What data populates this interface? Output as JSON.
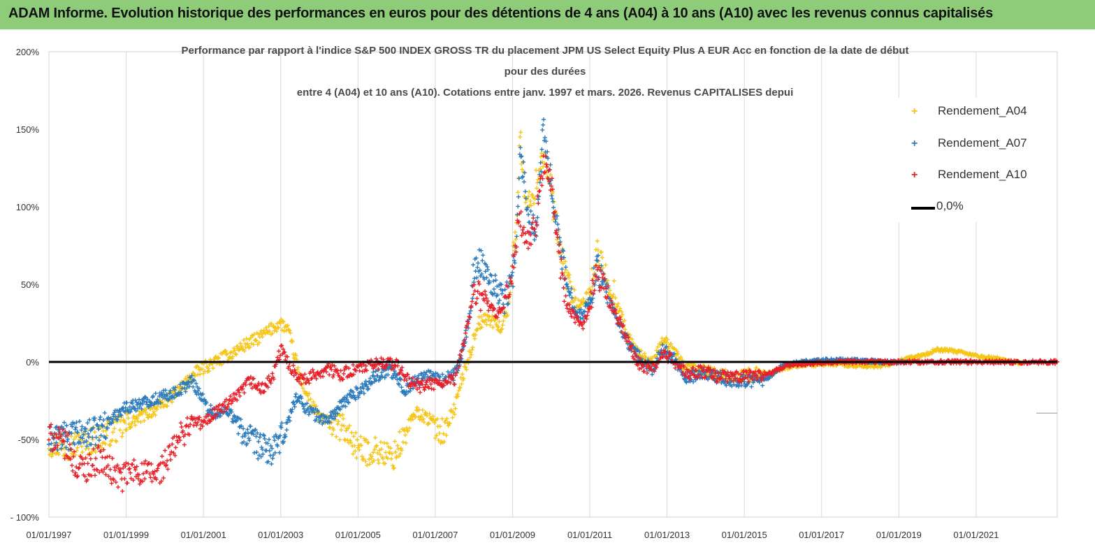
{
  "banner": {
    "title": "ADAM Informe. Evolution historique des performances en euros pour des détentions de 4 ans (A04) à 10 ans (A10) avec les revenus connus capitalisés"
  },
  "colors": {
    "banner": "#8fcc7a",
    "A04": "#f5c518",
    "A07": "#2b7bbd",
    "A10": "#e8202a",
    "zero": "#000000",
    "grid": "#d9d9d9"
  },
  "chart_data": {
    "type": "scatter",
    "title_lines": [
      "Performance par rapport à l'indice S&P 500 INDEX GROSS TR  du placement JPM US Select Equity Plus A EUR Acc en fonction de la date de début",
      "pour des durées",
      "entre 4 (A04) et 10 ans (A10). Cotations entre janv. 1997 et mars. 2026. Revenus CAPITALISES depui"
    ],
    "y_tick_labels": [
      "- 100%",
      "-50%",
      "0%",
      "50%",
      "100%",
      "150%",
      "200%"
    ],
    "y_ticks": [
      -100,
      -50,
      0,
      50,
      100,
      150,
      200
    ],
    "x_tick_labels": [
      "01/01/1997",
      "01/01/1999",
      "01/01/2001",
      "01/01/2003",
      "01/01/2005",
      "01/01/2007",
      "01/01/2009",
      "01/01/2011",
      "01/01/2013",
      "01/01/2015",
      "01/01/2017",
      "01/01/2019",
      "01/01/2021"
    ],
    "x_ticks": [
      1997,
      1999,
      2001,
      2003,
      2005,
      2007,
      2009,
      2011,
      2013,
      2015,
      2017,
      2019,
      2021
    ],
    "xlim": [
      1997,
      2023.1
    ],
    "ylim": [
      -100,
      200
    ],
    "grid": "vertical",
    "legend_position": "top-right",
    "legend": [
      "Rendement_A04",
      "Rendement_A07",
      "Rendement_A10",
      "0,0%"
    ],
    "reference_line": {
      "name": "0,0%",
      "y": 0
    },
    "series": [
      {
        "name": "Rendement_A04",
        "color": "#f5c518",
        "end": 2022.2,
        "points": [
          [
            1997.0,
            -52
          ],
          [
            1997.4,
            -54
          ],
          [
            1997.8,
            -53
          ],
          [
            1998.2,
            -50
          ],
          [
            1998.6,
            -45
          ],
          [
            1999.0,
            -41
          ],
          [
            1999.4,
            -35
          ],
          [
            1999.8,
            -30
          ],
          [
            2000.2,
            -22
          ],
          [
            2000.6,
            -12
          ],
          [
            2000.9,
            -5
          ],
          [
            2001.3,
            0
          ],
          [
            2001.7,
            5
          ],
          [
            2002.0,
            10
          ],
          [
            2002.4,
            15
          ],
          [
            2002.8,
            22
          ],
          [
            2003.0,
            25
          ],
          [
            2003.2,
            20
          ],
          [
            2003.5,
            -10
          ],
          [
            2003.8,
            -28
          ],
          [
            2004.0,
            -35
          ],
          [
            2004.3,
            -40
          ],
          [
            2004.6,
            -42
          ],
          [
            2004.9,
            -52
          ],
          [
            2005.1,
            -58
          ],
          [
            2005.5,
            -57
          ],
          [
            2005.9,
            -62
          ],
          [
            2006.2,
            -48
          ],
          [
            2006.5,
            -32
          ],
          [
            2006.9,
            -38
          ],
          [
            2007.2,
            -45
          ],
          [
            2007.5,
            -30
          ],
          [
            2007.7,
            -10
          ],
          [
            2007.9,
            5
          ],
          [
            2008.1,
            25
          ],
          [
            2008.4,
            28
          ],
          [
            2008.7,
            22
          ],
          [
            2008.9,
            35
          ],
          [
            2009.0,
            65
          ],
          [
            2009.1,
            90
          ],
          [
            2009.2,
            145
          ],
          [
            2009.3,
            110
          ],
          [
            2009.5,
            100
          ],
          [
            2009.6,
            115
          ],
          [
            2009.8,
            135
          ],
          [
            2010.0,
            110
          ],
          [
            2010.2,
            75
          ],
          [
            2010.4,
            55
          ],
          [
            2010.6,
            40
          ],
          [
            2010.8,
            35
          ],
          [
            2011.0,
            45
          ],
          [
            2011.2,
            70
          ],
          [
            2011.4,
            55
          ],
          [
            2011.7,
            40
          ],
          [
            2012.0,
            15
          ],
          [
            2012.3,
            5
          ],
          [
            2012.6,
            -2
          ],
          [
            2012.9,
            15
          ],
          [
            2013.2,
            5
          ],
          [
            2013.5,
            -5
          ],
          [
            2013.9,
            -5
          ],
          [
            2014.3,
            -8
          ],
          [
            2014.7,
            -10
          ],
          [
            2015.2,
            -8
          ],
          [
            2015.7,
            -7
          ],
          [
            2016.2,
            -3
          ],
          [
            2016.7,
            -2
          ],
          [
            2017.2,
            -1
          ],
          [
            2017.7,
            -2
          ],
          [
            2018.2,
            -3
          ],
          [
            2018.7,
            -2
          ],
          [
            2019.2,
            2
          ],
          [
            2019.6,
            4
          ],
          [
            2020.0,
            8
          ],
          [
            2020.4,
            7
          ],
          [
            2020.8,
            5
          ],
          [
            2021.2,
            3
          ],
          [
            2021.6,
            2
          ],
          [
            2022.2,
            -1
          ]
        ]
      },
      {
        "name": "Rendement_A07",
        "color": "#2b7bbd",
        "end": 2019.2,
        "points": [
          [
            1997.0,
            -50
          ],
          [
            1997.4,
            -48
          ],
          [
            1997.8,
            -47
          ],
          [
            1998.2,
            -45
          ],
          [
            1998.6,
            -38
          ],
          [
            1998.9,
            -30
          ],
          [
            1999.2,
            -28
          ],
          [
            1999.6,
            -25
          ],
          [
            2000.0,
            -22
          ],
          [
            2000.4,
            -18
          ],
          [
            2000.7,
            -12
          ],
          [
            2000.9,
            -20
          ],
          [
            2001.1,
            -30
          ],
          [
            2001.4,
            -35
          ],
          [
            2001.6,
            -30
          ],
          [
            2001.9,
            -40
          ],
          [
            2002.1,
            -48
          ],
          [
            2002.5,
            -55
          ],
          [
            2002.8,
            -58
          ],
          [
            2003.0,
            -50
          ],
          [
            2003.2,
            -38
          ],
          [
            2003.4,
            -22
          ],
          [
            2003.6,
            -28
          ],
          [
            2003.9,
            -34
          ],
          [
            2004.2,
            -38
          ],
          [
            2004.5,
            -30
          ],
          [
            2004.8,
            -22
          ],
          [
            2005.1,
            -18
          ],
          [
            2005.4,
            -10
          ],
          [
            2005.8,
            -5
          ],
          [
            2006.0,
            -10
          ],
          [
            2006.2,
            -18
          ],
          [
            2006.5,
            -12
          ],
          [
            2006.9,
            -8
          ],
          [
            2007.2,
            -12
          ],
          [
            2007.5,
            -8
          ],
          [
            2007.7,
            5
          ],
          [
            2007.9,
            30
          ],
          [
            2008.0,
            60
          ],
          [
            2008.2,
            65
          ],
          [
            2008.5,
            50
          ],
          [
            2008.8,
            40
          ],
          [
            2009.0,
            55
          ],
          [
            2009.1,
            75
          ],
          [
            2009.2,
            135
          ],
          [
            2009.3,
            120
          ],
          [
            2009.4,
            95
          ],
          [
            2009.6,
            85
          ],
          [
            2009.8,
            150
          ],
          [
            2010.0,
            115
          ],
          [
            2010.2,
            80
          ],
          [
            2010.4,
            50
          ],
          [
            2010.6,
            35
          ],
          [
            2010.8,
            30
          ],
          [
            2011.0,
            40
          ],
          [
            2011.2,
            62
          ],
          [
            2011.4,
            45
          ],
          [
            2011.7,
            28
          ],
          [
            2012.0,
            12
          ],
          [
            2012.3,
            2
          ],
          [
            2012.6,
            -5
          ],
          [
            2012.9,
            8
          ],
          [
            2013.2,
            2
          ],
          [
            2013.5,
            -10
          ],
          [
            2013.9,
            -8
          ],
          [
            2014.3,
            -10
          ],
          [
            2014.7,
            -12
          ],
          [
            2015.2,
            -12
          ],
          [
            2015.6,
            -11
          ],
          [
            2016.0,
            -2
          ],
          [
            2016.5,
            0
          ],
          [
            2017.0,
            1
          ],
          [
            2017.5,
            1
          ],
          [
            2018.0,
            1
          ],
          [
            2018.6,
            0
          ],
          [
            2019.2,
            0
          ]
        ]
      },
      {
        "name": "Rendement_A10",
        "color": "#e8202a",
        "end": 2023.1,
        "points": [
          [
            1997.0,
            -48
          ],
          [
            1997.2,
            -50
          ],
          [
            1997.5,
            -55
          ],
          [
            1997.7,
            -68
          ],
          [
            1998.0,
            -68
          ],
          [
            1998.3,
            -62
          ],
          [
            1998.6,
            -70
          ],
          [
            1998.9,
            -75
          ],
          [
            1999.2,
            -70
          ],
          [
            1999.5,
            -72
          ],
          [
            1999.8,
            -73
          ],
          [
            2000.1,
            -62
          ],
          [
            2000.4,
            -48
          ],
          [
            2000.7,
            -38
          ],
          [
            2001.0,
            -40
          ],
          [
            2001.3,
            -32
          ],
          [
            2001.6,
            -28
          ],
          [
            2001.9,
            -22
          ],
          [
            2002.2,
            -12
          ],
          [
            2002.5,
            -18
          ],
          [
            2002.8,
            -10
          ],
          [
            2003.0,
            8
          ],
          [
            2003.3,
            -5
          ],
          [
            2003.6,
            -12
          ],
          [
            2003.9,
            -8
          ],
          [
            2004.2,
            -4
          ],
          [
            2004.5,
            -8
          ],
          [
            2004.8,
            -6
          ],
          [
            2005.1,
            -4
          ],
          [
            2005.4,
            -2
          ],
          [
            2005.7,
            0
          ],
          [
            2006.0,
            -2
          ],
          [
            2006.3,
            -12
          ],
          [
            2006.6,
            -16
          ],
          [
            2006.9,
            -14
          ],
          [
            2007.2,
            -14
          ],
          [
            2007.5,
            -12
          ],
          [
            2007.8,
            20
          ],
          [
            2008.0,
            45
          ],
          [
            2008.3,
            40
          ],
          [
            2008.6,
            28
          ],
          [
            2008.9,
            45
          ],
          [
            2009.1,
            80
          ],
          [
            2009.2,
            90
          ],
          [
            2009.4,
            75
          ],
          [
            2009.6,
            88
          ],
          [
            2009.8,
            130
          ],
          [
            2010.0,
            115
          ],
          [
            2010.2,
            70
          ],
          [
            2010.4,
            38
          ],
          [
            2010.6,
            28
          ],
          [
            2010.8,
            22
          ],
          [
            2011.0,
            38
          ],
          [
            2011.2,
            58
          ],
          [
            2011.4,
            45
          ],
          [
            2011.7,
            30
          ],
          [
            2012.0,
            12
          ],
          [
            2012.3,
            -2
          ],
          [
            2012.6,
            -5
          ],
          [
            2012.9,
            5
          ],
          [
            2013.2,
            0
          ],
          [
            2013.5,
            -8
          ],
          [
            2013.9,
            -6
          ],
          [
            2014.3,
            -9
          ],
          [
            2014.7,
            -10
          ],
          [
            2015.2,
            -9
          ],
          [
            2015.7,
            -7
          ],
          [
            2016.1,
            -2
          ],
          [
            2016.6,
            -1
          ],
          [
            2017.2,
            0
          ],
          [
            2018.0,
            0
          ],
          [
            2019.0,
            0
          ],
          [
            2020.0,
            0
          ],
          [
            2021.0,
            0
          ],
          [
            2022.0,
            0
          ],
          [
            2023.1,
            0
          ]
        ]
      }
    ]
  }
}
